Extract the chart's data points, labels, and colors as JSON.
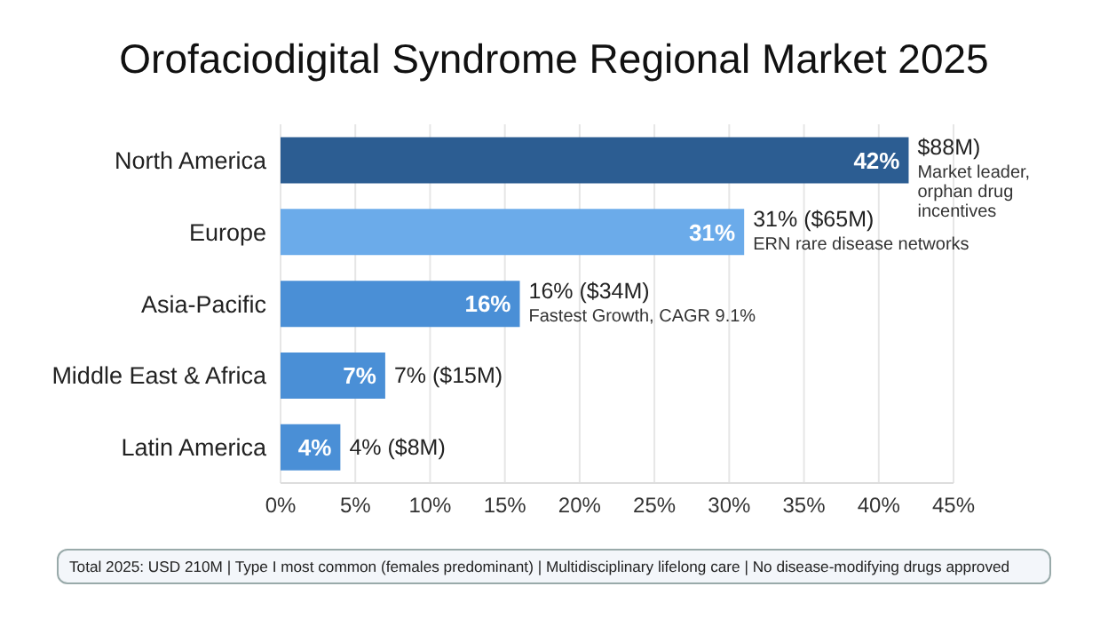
{
  "chart_data": {
    "type": "bar",
    "orientation": "horizontal",
    "title": "Orofaciodigital Syndrome Regional Market 2025",
    "categories": [
      "North America",
      "Europe",
      "Asia-Pacific",
      "Middle East & Africa",
      "Latin America"
    ],
    "values": [
      42,
      31,
      16,
      7,
      4
    ],
    "colors": [
      "#2c5d92",
      "#6babea",
      "#4a8fd6",
      "#4a8fd6",
      "#4a8fd6"
    ],
    "value_labels": [
      "42%",
      "31%",
      "16%",
      "7%",
      "4%"
    ],
    "xlim": [
      0,
      45
    ],
    "xticks": [
      {
        "value": 0,
        "label": "0%"
      },
      {
        "value": 5,
        "label": "5%"
      },
      {
        "value": 10,
        "label": "10%"
      },
      {
        "value": 15,
        "label": "15%"
      },
      {
        "value": 20,
        "label": "20%"
      },
      {
        "value": 25,
        "label": "25%"
      },
      {
        "value": 30,
        "label": "30%"
      },
      {
        "value": 35,
        "label": "35%"
      },
      {
        "value": 40,
        "label": "40%"
      },
      {
        "value": 45,
        "label": "45%"
      }
    ],
    "grid": "x",
    "legend": false,
    "annotations": [
      {
        "text": "$88M)",
        "x": 42,
        "y": "North America"
      },
      {
        "text": "Market leader, orphan drug incentives",
        "x": 42,
        "y": "North America"
      },
      {
        "text": "31% ($65M)",
        "x": 31,
        "y": "Europe"
      },
      {
        "text": "ERN rare disease networks",
        "x": 31,
        "y": "Europe"
      },
      {
        "text": "16% ($34M)",
        "x": 16,
        "y": "Asia-Pacific"
      },
      {
        "text": "Fastest Growth, CAGR 9.1%",
        "x": 16,
        "y": "Asia-Pacific"
      },
      {
        "text": "7% ($15M)",
        "x": 7,
        "y": "Middle East & Africa"
      },
      {
        "text": "4% ($8M)",
        "x": 4,
        "y": "Latin America"
      },
      "Total 2025: USD 210M | Type I most common (females predominant) | Multidisciplinary lifelong care | No disease-modifying drugs approved"
    ]
  }
}
